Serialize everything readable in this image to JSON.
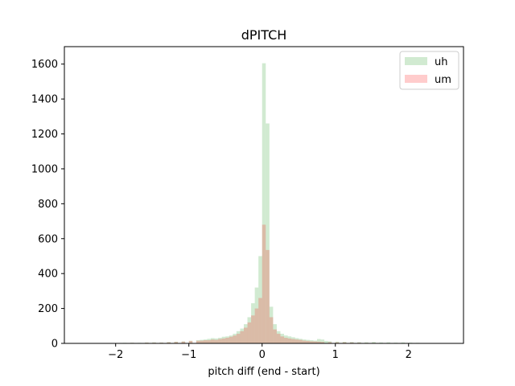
{
  "chart_data": {
    "type": "bar",
    "title": "dPITCH",
    "xlabel": "pitch diff (end - start)",
    "ylabel": "",
    "xlim": [
      -2.7,
      2.75
    ],
    "ylim": [
      0,
      1700
    ],
    "xticks": [
      -2,
      -1,
      0,
      1,
      2
    ],
    "xtick_labels": [
      "−2",
      "−1",
      "0",
      "1",
      "2"
    ],
    "yticks": [
      0,
      200,
      400,
      600,
      800,
      1000,
      1200,
      1400,
      1600
    ],
    "ytick_labels": [
      "0",
      "200",
      "400",
      "600",
      "800",
      "1000",
      "1200",
      "1400",
      "1600"
    ],
    "bin_width": 0.05,
    "legend_position": "top-right",
    "series": [
      {
        "name": "uh",
        "color": "#2ca02c",
        "alpha": 0.22,
        "bins": [
          [
            -2.4,
            2
          ],
          [
            -2.3,
            1
          ],
          [
            -2.2,
            2
          ],
          [
            -2.1,
            1
          ],
          [
            -2.0,
            2
          ],
          [
            -1.9,
            3
          ],
          [
            -1.8,
            4
          ],
          [
            -1.7,
            3
          ],
          [
            -1.6,
            5
          ],
          [
            -1.5,
            6
          ],
          [
            -1.4,
            5
          ],
          [
            -1.3,
            8
          ],
          [
            -1.2,
            10
          ],
          [
            -1.1,
            12
          ],
          [
            -1.0,
            15
          ],
          [
            -0.9,
            18
          ],
          [
            -0.85,
            20
          ],
          [
            -0.8,
            22
          ],
          [
            -0.75,
            26
          ],
          [
            -0.7,
            30
          ],
          [
            -0.65,
            28
          ],
          [
            -0.6,
            32
          ],
          [
            -0.55,
            38
          ],
          [
            -0.5,
            40
          ],
          [
            -0.45,
            45
          ],
          [
            -0.4,
            55
          ],
          [
            -0.35,
            70
          ],
          [
            -0.3,
            85
          ],
          [
            -0.25,
            110
          ],
          [
            -0.2,
            150
          ],
          [
            -0.15,
            230
          ],
          [
            -0.1,
            320
          ],
          [
            -0.05,
            500
          ],
          [
            0.0,
            1605
          ],
          [
            0.05,
            1260
          ],
          [
            0.1,
            210
          ],
          [
            0.15,
            110
          ],
          [
            0.2,
            70
          ],
          [
            0.25,
            55
          ],
          [
            0.3,
            45
          ],
          [
            0.35,
            40
          ],
          [
            0.4,
            35
          ],
          [
            0.45,
            30
          ],
          [
            0.5,
            26
          ],
          [
            0.55,
            22
          ],
          [
            0.6,
            20
          ],
          [
            0.65,
            18
          ],
          [
            0.7,
            16
          ],
          [
            0.75,
            25
          ],
          [
            0.8,
            22
          ],
          [
            0.85,
            14
          ],
          [
            0.9,
            12
          ],
          [
            1.0,
            10
          ],
          [
            1.1,
            9
          ],
          [
            1.2,
            8
          ],
          [
            1.3,
            7
          ],
          [
            1.4,
            6
          ],
          [
            1.5,
            8
          ],
          [
            1.6,
            5
          ],
          [
            1.7,
            6
          ],
          [
            1.8,
            4
          ],
          [
            1.9,
            5
          ],
          [
            2.0,
            4
          ],
          [
            2.1,
            3
          ],
          [
            2.2,
            2
          ],
          [
            2.3,
            2
          ],
          [
            2.4,
            1
          ]
        ]
      },
      {
        "name": "um",
        "color": "#ff0000",
        "alpha": 0.2,
        "bins": [
          [
            -2.4,
            1
          ],
          [
            -2.2,
            1
          ],
          [
            -2.0,
            2
          ],
          [
            -1.8,
            3
          ],
          [
            -1.7,
            2
          ],
          [
            -1.6,
            4
          ],
          [
            -1.5,
            4
          ],
          [
            -1.4,
            4
          ],
          [
            -1.3,
            6
          ],
          [
            -1.2,
            8
          ],
          [
            -1.1,
            10
          ],
          [
            -1.0,
            14
          ],
          [
            -0.9,
            15
          ],
          [
            -0.85,
            16
          ],
          [
            -0.8,
            18
          ],
          [
            -0.75,
            18
          ],
          [
            -0.7,
            22
          ],
          [
            -0.65,
            20
          ],
          [
            -0.6,
            25
          ],
          [
            -0.55,
            28
          ],
          [
            -0.5,
            32
          ],
          [
            -0.45,
            38
          ],
          [
            -0.4,
            45
          ],
          [
            -0.35,
            55
          ],
          [
            -0.3,
            70
          ],
          [
            -0.25,
            90
          ],
          [
            -0.2,
            120
          ],
          [
            -0.15,
            160
          ],
          [
            -0.1,
            200
          ],
          [
            -0.05,
            260
          ],
          [
            0.0,
            680
          ],
          [
            0.05,
            535
          ],
          [
            0.1,
            150
          ],
          [
            0.15,
            80
          ],
          [
            0.2,
            55
          ],
          [
            0.25,
            40
          ],
          [
            0.3,
            32
          ],
          [
            0.35,
            28
          ],
          [
            0.4,
            25
          ],
          [
            0.45,
            22
          ],
          [
            0.5,
            20
          ],
          [
            0.55,
            16
          ],
          [
            0.6,
            14
          ],
          [
            0.65,
            12
          ],
          [
            0.7,
            11
          ],
          [
            0.75,
            10
          ],
          [
            0.8,
            8
          ],
          [
            0.9,
            7
          ],
          [
            1.0,
            6
          ],
          [
            1.1,
            6
          ],
          [
            1.2,
            5
          ],
          [
            1.3,
            4
          ],
          [
            1.4,
            3
          ],
          [
            1.5,
            3
          ],
          [
            1.6,
            2
          ],
          [
            1.8,
            2
          ],
          [
            2.0,
            1
          ],
          [
            2.2,
            1
          ]
        ]
      }
    ]
  }
}
